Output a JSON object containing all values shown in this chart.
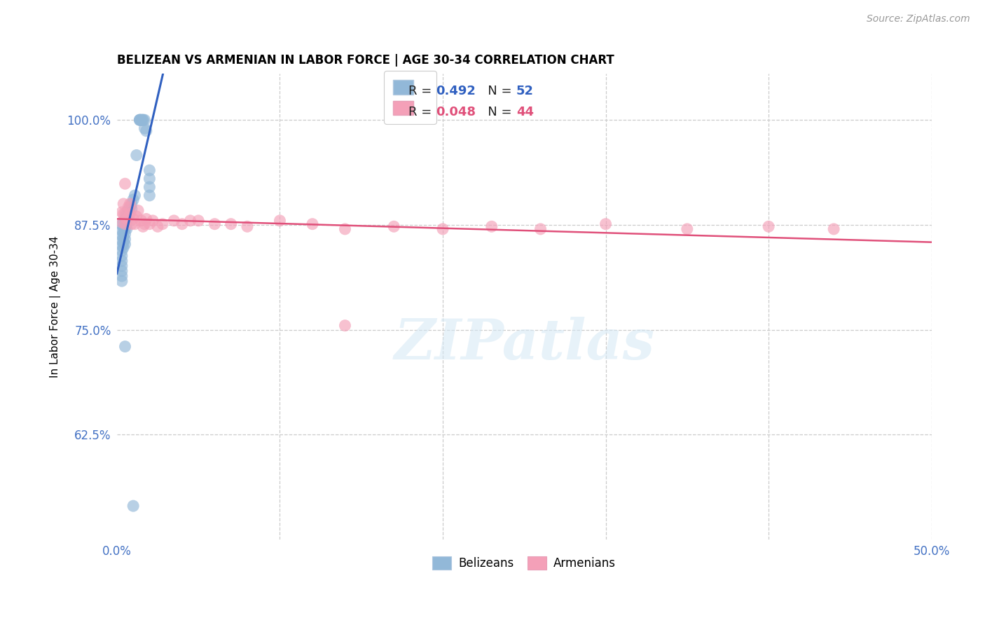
{
  "title": "BELIZEAN VS ARMENIAN IN LABOR FORCE | AGE 30-34 CORRELATION CHART",
  "source": "Source: ZipAtlas.com",
  "ylabel": "In Labor Force | Age 30-34",
  "xlim": [
    0.0,
    0.5
  ],
  "ylim": [
    0.5,
    1.055
  ],
  "xticks": [
    0.0,
    0.1,
    0.2,
    0.3,
    0.4,
    0.5
  ],
  "xtick_labels": [
    "0.0%",
    "",
    "",
    "",
    "",
    "50.0%"
  ],
  "yticks": [
    0.625,
    0.75,
    0.875,
    1.0
  ],
  "ytick_labels": [
    "62.5%",
    "75.0%",
    "87.5%",
    "100.0%"
  ],
  "blue_color": "#92b8d8",
  "pink_color": "#f4a0b8",
  "blue_line_color": "#3060c0",
  "pink_line_color": "#e0507a",
  "r_blue": "0.492",
  "n_blue": "52",
  "r_pink": "0.048",
  "n_pink": "44",
  "legend_label_blue": "Belizeans",
  "legend_label_pink": "Armenians",
  "watermark": "ZIPatlas",
  "background_color": "#ffffff",
  "grid_color": "#cccccc",
  "blue_scatter_x": [
    0.003,
    0.003,
    0.003,
    0.003,
    0.003,
    0.003,
    0.003,
    0.003,
    0.003,
    0.003,
    0.003,
    0.003,
    0.004,
    0.004,
    0.004,
    0.004,
    0.004,
    0.004,
    0.005,
    0.005,
    0.005,
    0.005,
    0.005,
    0.005,
    0.006,
    0.006,
    0.006,
    0.006,
    0.007,
    0.007,
    0.008,
    0.009,
    0.009,
    0.01,
    0.011,
    0.012,
    0.014,
    0.014,
    0.014,
    0.015,
    0.015,
    0.016,
    0.016,
    0.017,
    0.017,
    0.018,
    0.02,
    0.02,
    0.02,
    0.02,
    0.005,
    0.01
  ],
  "blue_scatter_y": [
    0.875,
    0.868,
    0.862,
    0.856,
    0.85,
    0.844,
    0.838,
    0.832,
    0.826,
    0.82,
    0.814,
    0.808,
    0.879,
    0.872,
    0.866,
    0.86,
    0.854,
    0.848,
    0.882,
    0.876,
    0.87,
    0.864,
    0.858,
    0.852,
    0.888,
    0.882,
    0.876,
    0.87,
    0.893,
    0.887,
    0.896,
    0.9,
    0.894,
    0.905,
    0.91,
    0.958,
    1.0,
    1.0,
    1.0,
    1.0,
    1.0,
    1.0,
    1.0,
    1.0,
    0.99,
    0.987,
    0.94,
    0.93,
    0.92,
    0.91,
    0.73,
    0.54
  ],
  "pink_scatter_x": [
    0.003,
    0.003,
    0.004,
    0.004,
    0.005,
    0.005,
    0.006,
    0.007,
    0.007,
    0.008,
    0.008,
    0.009,
    0.01,
    0.011,
    0.012,
    0.013,
    0.015,
    0.016,
    0.017,
    0.018,
    0.02,
    0.022,
    0.025,
    0.028,
    0.035,
    0.04,
    0.045,
    0.05,
    0.06,
    0.07,
    0.08,
    0.1,
    0.12,
    0.14,
    0.17,
    0.2,
    0.23,
    0.26,
    0.3,
    0.35,
    0.4,
    0.44,
    0.005,
    0.14
  ],
  "pink_scatter_y": [
    0.89,
    0.878,
    0.9,
    0.888,
    0.888,
    0.876,
    0.882,
    0.896,
    0.884,
    0.9,
    0.888,
    0.876,
    0.882,
    0.876,
    0.885,
    0.892,
    0.88,
    0.873,
    0.876,
    0.882,
    0.876,
    0.88,
    0.873,
    0.876,
    0.88,
    0.876,
    0.88,
    0.88,
    0.876,
    0.876,
    0.873,
    0.88,
    0.876,
    0.87,
    0.873,
    0.87,
    0.873,
    0.87,
    0.876,
    0.87,
    0.873,
    0.87,
    0.924,
    0.755
  ]
}
